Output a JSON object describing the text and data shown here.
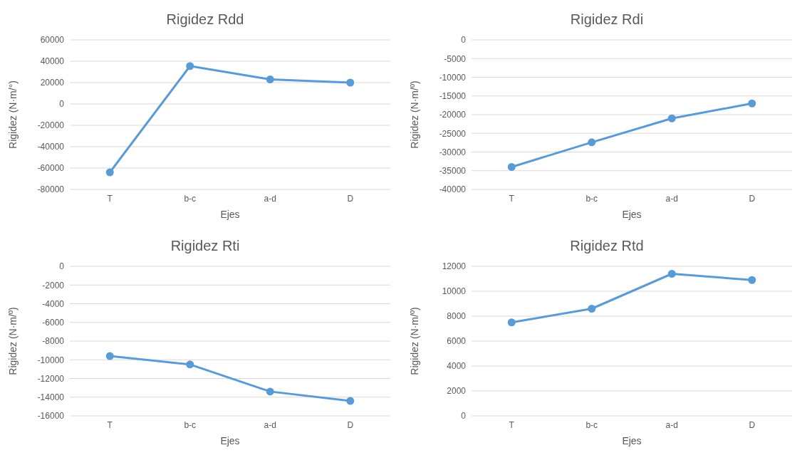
{
  "chart_data": [
    {
      "type": "line",
      "title": "Rigidez Rdd",
      "xlabel": "Ejes",
      "ylabel": "Rigidez (N·m/°)",
      "categories": [
        "T",
        "b-c",
        "a-d",
        "D"
      ],
      "series": [
        {
          "color": "#5b9bd5",
          "values": [
            -64000,
            35500,
            23000,
            20000
          ]
        }
      ],
      "ylim": [
        -80000,
        60000
      ],
      "yticks": [
        -80000,
        -60000,
        -40000,
        -20000,
        0,
        20000,
        40000,
        60000
      ],
      "grid": "y",
      "marker": "circle"
    },
    {
      "type": "line",
      "title": "Rigidez Rdi",
      "xlabel": "Ejes",
      "ylabel": "Rigidez (N·m/º)",
      "categories": [
        "T",
        "b-c",
        "a-d",
        "D"
      ],
      "series": [
        {
          "color": "#5b9bd5",
          "values": [
            -34000,
            -27400,
            -21000,
            -17000
          ]
        }
      ],
      "ylim": [
        -40000,
        0
      ],
      "yticks": [
        -40000,
        -35000,
        -30000,
        -25000,
        -20000,
        -15000,
        -10000,
        -5000,
        0
      ],
      "grid": "y",
      "marker": "circle"
    },
    {
      "type": "line",
      "title": "Rigidez Rti",
      "xlabel": "Ejes",
      "ylabel": "Rigidez (N·m/º)",
      "categories": [
        "T",
        "b-c",
        "a-d",
        "D"
      ],
      "series": [
        {
          "color": "#5b9bd5",
          "values": [
            -9600,
            -10500,
            -13400,
            -14400
          ]
        }
      ],
      "ylim": [
        -16000,
        0
      ],
      "yticks": [
        -16000,
        -14000,
        -12000,
        -10000,
        -8000,
        -6000,
        -4000,
        -2000,
        0
      ],
      "grid": "y",
      "marker": "circle"
    },
    {
      "type": "line",
      "title": "Rigidez Rtd",
      "xlabel": "Ejes",
      "ylabel": "Rigidez (N·m/º)",
      "categories": [
        "T",
        "b-c",
        "a-d",
        "D"
      ],
      "series": [
        {
          "color": "#5b9bd5",
          "values": [
            7500,
            8600,
            11400,
            10900
          ]
        }
      ],
      "ylim": [
        0,
        12000
      ],
      "yticks": [
        0,
        2000,
        4000,
        6000,
        8000,
        10000,
        12000
      ],
      "grid": "y",
      "marker": "circle"
    }
  ]
}
